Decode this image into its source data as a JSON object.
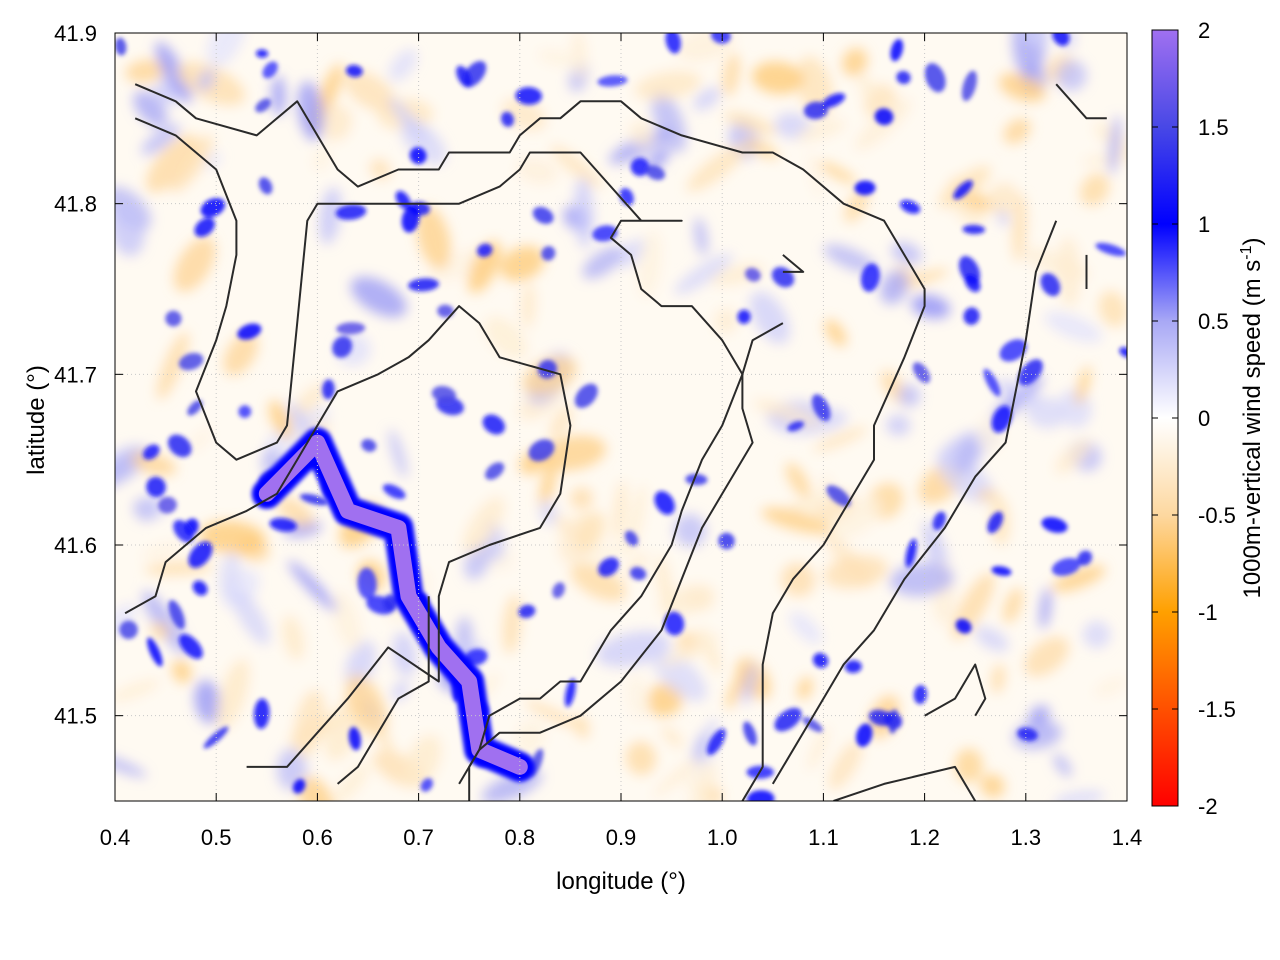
{
  "chart_data": {
    "type": "heatmap",
    "title": "",
    "xlabel": "longitude (°)",
    "ylabel": "latitude (°)",
    "colorbar_label": "1000m-vertical wind speed (m s-1)",
    "colorbar_label_parts": [
      "1000m-vertical wind speed (m s",
      "-1",
      ")"
    ],
    "xlim": [
      0.4,
      1.4
    ],
    "ylim": [
      41.45,
      41.9
    ],
    "clim": [
      -2,
      2
    ],
    "x_ticks": [
      "0.4",
      "0.5",
      "0.6",
      "0.7",
      "0.8",
      "0.9",
      "1.0",
      "1.1",
      "1.2",
      "1.3",
      "1.4"
    ],
    "y_ticks": [
      "41.5",
      "41.6",
      "41.7",
      "41.8",
      "41.9"
    ],
    "colorbar_ticks": [
      "2",
      "1.5",
      "1",
      "0.5",
      "0",
      "-0.5",
      "-1",
      "-1.5",
      "-2"
    ],
    "grid": true,
    "colorscale": [
      {
        "value": -2.0,
        "color": "#ff0000"
      },
      {
        "value": -1.0,
        "color": "#ffa000"
      },
      {
        "value": -0.5,
        "color": "#fdd8a0"
      },
      {
        "value": 0.0,
        "color": "#ffffff"
      },
      {
        "value": 0.5,
        "color": "#a8a8f5"
      },
      {
        "value": 1.0,
        "color": "#0000ff"
      },
      {
        "value": 1.5,
        "color": "#4848e6"
      },
      {
        "value": 2.0,
        "color": "#a070f0"
      }
    ],
    "strong_updraft_band": [
      [
        0.55,
        41.63
      ],
      [
        0.6,
        41.66
      ],
      [
        0.63,
        41.62
      ],
      [
        0.68,
        41.61
      ],
      [
        0.69,
        41.57
      ],
      [
        0.72,
        41.54
      ],
      [
        0.75,
        41.52
      ],
      [
        0.76,
        41.48
      ],
      [
        0.8,
        41.47
      ]
    ],
    "contours": [
      [
        [
          0.42,
          41.87
        ],
        [
          0.46,
          41.86
        ],
        [
          0.48,
          41.85
        ],
        [
          0.54,
          41.84
        ],
        [
          0.58,
          41.86
        ],
        [
          0.61,
          41.83
        ],
        [
          0.62,
          41.82
        ],
        [
          0.64,
          41.81
        ],
        [
          0.68,
          41.82
        ],
        [
          0.72,
          41.82
        ],
        [
          0.73,
          41.83
        ],
        [
          0.76,
          41.83
        ],
        [
          0.79,
          41.83
        ],
        [
          0.8,
          41.84
        ],
        [
          0.82,
          41.85
        ],
        [
          0.84,
          41.85
        ],
        [
          0.86,
          41.86
        ],
        [
          0.9,
          41.86
        ],
        [
          0.92,
          41.85
        ],
        [
          0.96,
          41.84
        ],
        [
          1.02,
          41.83
        ],
        [
          1.05,
          41.83
        ],
        [
          1.08,
          41.82
        ],
        [
          1.12,
          41.8
        ],
        [
          1.16,
          41.79
        ],
        [
          1.2,
          41.75
        ],
        [
          1.2,
          41.74
        ],
        [
          1.18,
          41.71
        ],
        [
          1.15,
          41.67
        ],
        [
          1.15,
          41.65
        ],
        [
          1.12,
          41.62
        ],
        [
          1.1,
          41.6
        ],
        [
          1.07,
          41.58
        ],
        [
          1.05,
          41.56
        ],
        [
          1.04,
          41.53
        ],
        [
          1.04,
          41.47
        ],
        [
          1.02,
          41.45
        ]
      ],
      [
        [
          0.42,
          41.85
        ],
        [
          0.46,
          41.84
        ],
        [
          0.5,
          41.82
        ],
        [
          0.52,
          41.79
        ],
        [
          0.52,
          41.77
        ],
        [
          0.51,
          41.74
        ],
        [
          0.5,
          41.72
        ],
        [
          0.48,
          41.69
        ],
        [
          0.5,
          41.66
        ],
        [
          0.52,
          41.65
        ],
        [
          0.56,
          41.66
        ],
        [
          0.57,
          41.67
        ],
        [
          0.58,
          41.73
        ],
        [
          0.59,
          41.79
        ],
        [
          0.6,
          41.8
        ],
        [
          0.62,
          41.8
        ],
        [
          0.65,
          41.8
        ],
        [
          0.69,
          41.8
        ],
        [
          0.74,
          41.8
        ],
        [
          0.78,
          41.81
        ],
        [
          0.8,
          41.82
        ],
        [
          0.81,
          41.83
        ],
        [
          0.86,
          41.83
        ],
        [
          0.92,
          41.79
        ],
        [
          0.96,
          41.79
        ],
        [
          0.93,
          41.79
        ],
        [
          0.9,
          41.79
        ],
        [
          0.89,
          41.78
        ],
        [
          0.91,
          41.77
        ],
        [
          0.92,
          41.75
        ],
        [
          0.94,
          41.74
        ],
        [
          0.97,
          41.74
        ],
        [
          1.0,
          41.72
        ],
        [
          1.02,
          41.7
        ],
        [
          1.02,
          41.68
        ],
        [
          1.03,
          41.66
        ],
        [
          1.0,
          41.63
        ],
        [
          0.98,
          41.61
        ],
        [
          0.96,
          41.58
        ],
        [
          0.94,
          41.55
        ],
        [
          0.9,
          41.52
        ],
        [
          0.86,
          41.5
        ],
        [
          0.82,
          41.49
        ],
        [
          0.78,
          41.49
        ],
        [
          0.76,
          41.48
        ],
        [
          0.75,
          41.47
        ],
        [
          0.75,
          41.45
        ]
      ],
      [
        [
          0.41,
          41.56
        ],
        [
          0.44,
          41.57
        ],
        [
          0.45,
          41.59
        ],
        [
          0.47,
          41.6
        ],
        [
          0.49,
          41.61
        ],
        [
          0.53,
          41.62
        ],
        [
          0.56,
          41.63
        ],
        [
          0.58,
          41.65
        ],
        [
          0.6,
          41.67
        ],
        [
          0.62,
          41.69
        ],
        [
          0.66,
          41.7
        ],
        [
          0.69,
          41.71
        ],
        [
          0.71,
          41.72
        ],
        [
          0.74,
          41.74
        ],
        [
          0.76,
          41.73
        ],
        [
          0.78,
          41.71
        ],
        [
          0.84,
          41.7
        ],
        [
          0.85,
          41.67
        ],
        [
          0.84,
          41.63
        ],
        [
          0.82,
          41.61
        ],
        [
          0.77,
          41.6
        ],
        [
          0.73,
          41.59
        ],
        [
          0.72,
          41.57
        ],
        [
          0.72,
          41.55
        ],
        [
          0.72,
          41.52
        ],
        [
          0.67,
          41.54
        ],
        [
          0.63,
          41.51
        ],
        [
          0.6,
          41.49
        ],
        [
          0.57,
          41.47
        ],
        [
          0.53,
          41.47
        ]
      ],
      [
        [
          0.71,
          41.57
        ],
        [
          0.71,
          41.55
        ],
        [
          0.71,
          41.52
        ],
        [
          0.68,
          41.51
        ],
        [
          0.66,
          41.49
        ],
        [
          0.64,
          41.47
        ],
        [
          0.62,
          41.46
        ]
      ],
      [
        [
          0.74,
          41.46
        ],
        [
          0.76,
          41.48
        ],
        [
          0.77,
          41.5
        ],
        [
          0.8,
          41.51
        ],
        [
          0.82,
          41.51
        ],
        [
          0.84,
          41.52
        ],
        [
          0.86,
          41.52
        ],
        [
          0.89,
          41.55
        ],
        [
          0.92,
          41.57
        ],
        [
          0.95,
          41.6
        ],
        [
          0.96,
          41.62
        ],
        [
          0.98,
          41.65
        ],
        [
          1.0,
          41.67
        ],
        [
          1.02,
          41.7
        ],
        [
          1.03,
          41.72
        ],
        [
          1.06,
          41.73
        ]
      ],
      [
        [
          1.06,
          41.77
        ],
        [
          1.08,
          41.76
        ],
        [
          1.06,
          41.76
        ]
      ],
      [
        [
          1.2,
          41.5
        ],
        [
          1.23,
          41.51
        ],
        [
          1.25,
          41.53
        ],
        [
          1.26,
          41.51
        ],
        [
          1.25,
          41.5
        ]
      ],
      [
        [
          1.11,
          41.45
        ],
        [
          1.16,
          41.46
        ],
        [
          1.23,
          41.47
        ],
        [
          1.25,
          41.45
        ]
      ],
      [
        [
          1.33,
          41.87
        ],
        [
          1.36,
          41.85
        ],
        [
          1.38,
          41.85
        ]
      ],
      [
        [
          1.33,
          41.79
        ],
        [
          1.31,
          41.76
        ],
        [
          1.3,
          41.72
        ],
        [
          1.29,
          41.69
        ],
        [
          1.28,
          41.66
        ],
        [
          1.25,
          41.64
        ],
        [
          1.22,
          41.61
        ],
        [
          1.18,
          41.58
        ],
        [
          1.15,
          41.55
        ],
        [
          1.12,
          41.53
        ],
        [
          1.09,
          41.5
        ],
        [
          1.06,
          41.47
        ],
        [
          1.05,
          41.46
        ]
      ],
      [
        [
          1.36,
          41.75
        ],
        [
          1.36,
          41.77
        ]
      ]
    ]
  }
}
